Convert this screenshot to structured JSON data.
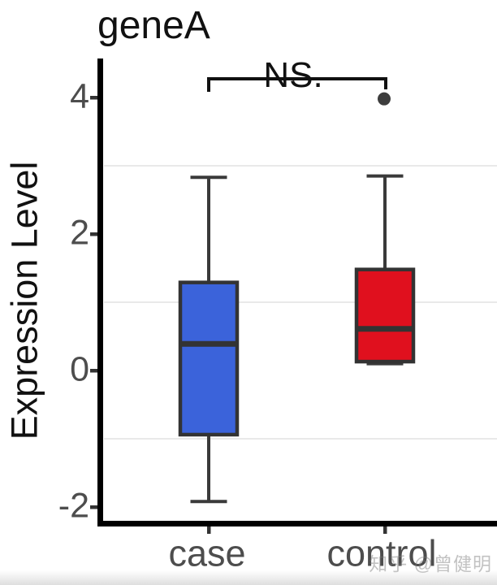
{
  "watermark": "知乎 @曾健明",
  "chart_data": {
    "type": "boxplot",
    "title": "geneA",
    "ylabel": "Expression Level",
    "xlabel": "",
    "categories": [
      "case",
      "control"
    ],
    "ylim": [
      -2.35,
      4.55
    ],
    "yticks": [
      4,
      2,
      0,
      -2
    ],
    "minor_gridlines": [
      3,
      1,
      -1
    ],
    "grid": "horizontal-minor-only",
    "legend": "none",
    "series": [
      {
        "name": "case",
        "fill_color": "#3b63da",
        "whisker_low": -1.92,
        "q1": -0.94,
        "median": 0.39,
        "q3": 1.29,
        "whisker_high": 2.83,
        "outliers": []
      },
      {
        "name": "control",
        "fill_color": "#e0101e",
        "whisker_low": 0.1,
        "q1": 0.13,
        "median": 0.61,
        "q3": 1.48,
        "whisker_high": 2.85,
        "outliers": [
          3.98
        ]
      }
    ],
    "annotation": {
      "label": "NS.",
      "between": [
        "case",
        "control"
      ]
    },
    "colors": {
      "axis": "#000000",
      "box_border": "#333333",
      "whisker": "#3a3a3a",
      "median": "#333333",
      "gridline": "#e9e9e9",
      "tick_mark": "#333333",
      "tick_text": "#4d4d4d",
      "title_text": "#111111",
      "bracket": "#111111",
      "outlier": "#3d3d3d"
    }
  }
}
